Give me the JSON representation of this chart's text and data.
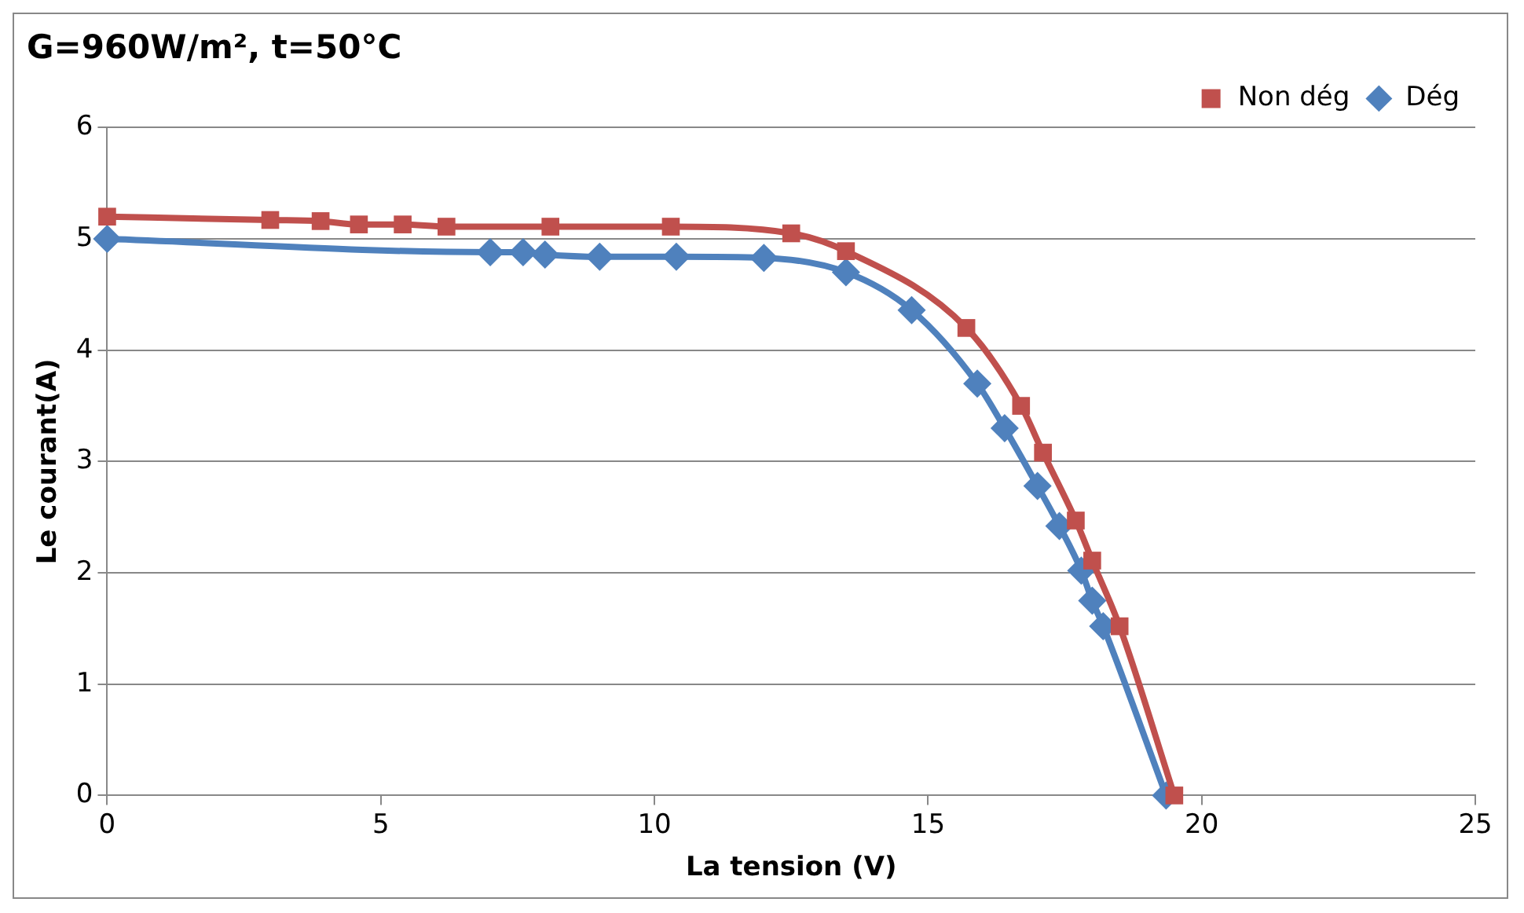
{
  "chart_data": {
    "type": "line",
    "title": "G=960W/m², t=50°C",
    "xlabel": "La tension (V)",
    "ylabel": "Le courant(A)",
    "xlim": [
      0,
      25
    ],
    "xticks": [
      0,
      5,
      10,
      15,
      20,
      25
    ],
    "ylim": [
      0,
      6
    ],
    "yticks": [
      0,
      1,
      2,
      3,
      4,
      5,
      6
    ],
    "grid": "y",
    "legend": "top right",
    "line_style": "solid",
    "series": [
      {
        "name": "Non dég",
        "color": "#c0504d",
        "marker": "square",
        "x": [
          0,
          2.98,
          3.9,
          4.6,
          5.4,
          6.2,
          8.1,
          10.3,
          12.5,
          13.5,
          15.7,
          16.7,
          17.1,
          17.7,
          18.0,
          18.5,
          19.5
        ],
        "values": [
          5.2,
          5.17,
          5.16,
          5.13,
          5.13,
          5.11,
          5.11,
          5.11,
          5.05,
          4.89,
          4.2,
          3.5,
          3.08,
          2.47,
          2.11,
          1.52,
          0
        ]
      },
      {
        "name": "Dég",
        "color": "#4f81bd",
        "marker": "diamond",
        "x": [
          0,
          7.0,
          7.6,
          8.0,
          9.0,
          10.4,
          12.0,
          13.5,
          14.7,
          15.9,
          16.4,
          17.0,
          17.4,
          17.8,
          18.0,
          18.2,
          19.35
        ],
        "values": [
          5.0,
          4.88,
          4.88,
          4.86,
          4.84,
          4.84,
          4.83,
          4.7,
          4.36,
          3.7,
          3.3,
          2.78,
          2.42,
          2.02,
          1.75,
          1.52,
          0
        ]
      }
    ]
  }
}
